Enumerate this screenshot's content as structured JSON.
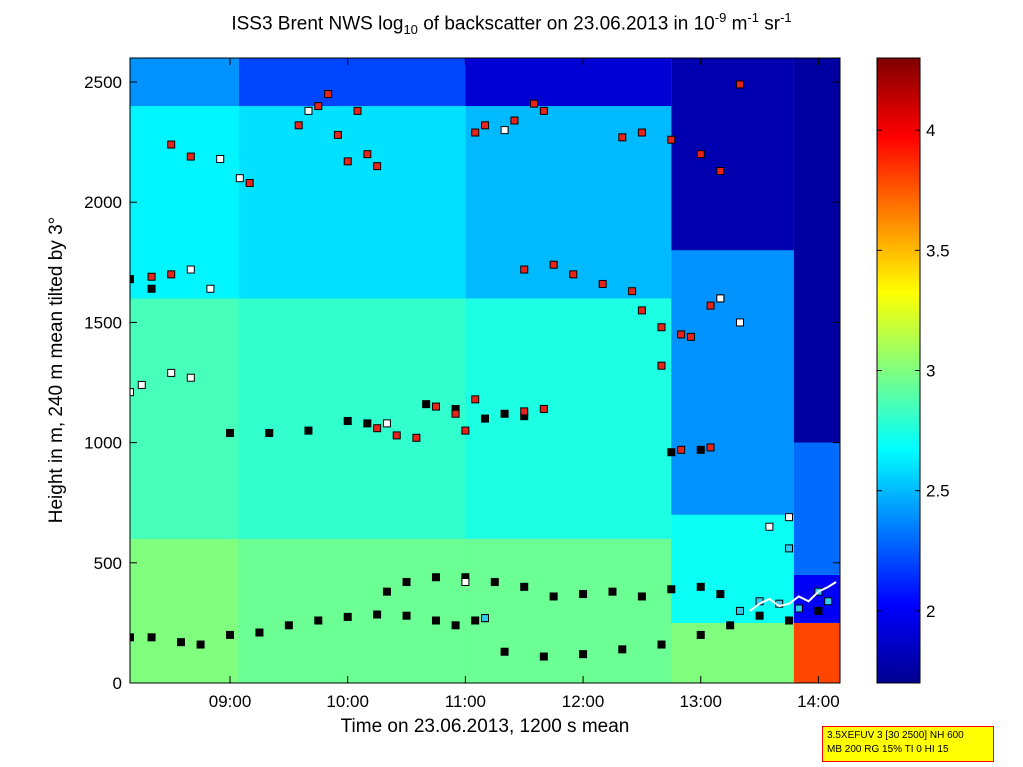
{
  "chart_data": {
    "type": "heatmap",
    "title": {
      "prefix": "ISS3 Brent NWS log",
      "sub": "10",
      "middle": " of backscatter on 23.06.2013 in 10",
      "sup1": "-9",
      "unit_m": " m",
      "sup2": "-1",
      "unit_sr": " sr",
      "sup3": "-1"
    },
    "xlabel": "Time on 23.06.2013, 1200 s mean",
    "ylabel": "Height in m, 240 m mean tilted by 3°",
    "x_ticks": [
      "09:00",
      "10:00",
      "11:00",
      "12:00",
      "13:00",
      "14:00"
    ],
    "xlim": [
      "08:09",
      "14:11"
    ],
    "y_ticks": [
      0,
      500,
      1000,
      1500,
      2000,
      2500
    ],
    "ylim": [
      0,
      2600
    ],
    "colorbar": {
      "ticks": [
        2,
        2.5,
        3,
        3.5,
        4
      ],
      "range": [
        1.7,
        4.3
      ],
      "colormap": "jet"
    },
    "field": [
      {
        "x": "08:09",
        "regions": [
          [
            0,
            600,
            3.0
          ],
          [
            600,
            1600,
            2.85
          ],
          [
            1600,
            2400,
            2.65
          ],
          [
            2400,
            2600,
            2.4
          ]
        ]
      },
      {
        "x": "10:00",
        "regions": [
          [
            0,
            600,
            2.95
          ],
          [
            600,
            1600,
            2.8
          ],
          [
            1600,
            2400,
            2.6
          ],
          [
            2400,
            2600,
            2.2
          ]
        ]
      },
      {
        "x": "12:00",
        "regions": [
          [
            0,
            600,
            2.95
          ],
          [
            600,
            1600,
            2.75
          ],
          [
            1600,
            2400,
            2.5
          ],
          [
            2400,
            2600,
            1.9
          ]
        ]
      },
      {
        "x": "13:30",
        "regions": [
          [
            0,
            250,
            3.0
          ],
          [
            250,
            700,
            2.7
          ],
          [
            700,
            1800,
            2.4
          ],
          [
            1800,
            2600,
            1.8
          ]
        ]
      },
      {
        "x": "14:05",
        "regions": [
          [
            0,
            250,
            3.8
          ],
          [
            250,
            450,
            2.0
          ],
          [
            450,
            1000,
            2.3
          ],
          [
            1000,
            2600,
            1.75
          ]
        ]
      }
    ],
    "series": [
      {
        "marker": "black-square",
        "points": [
          [
            "08:09",
            190
          ],
          [
            "08:20",
            190
          ],
          [
            "08:35",
            170
          ],
          [
            "08:45",
            160
          ],
          [
            "09:00",
            200
          ],
          [
            "09:15",
            210
          ],
          [
            "09:30",
            240
          ],
          [
            "09:45",
            260
          ],
          [
            "10:00",
            275
          ],
          [
            "10:15",
            285
          ],
          [
            "10:30",
            280
          ],
          [
            "10:45",
            260
          ],
          [
            "10:55",
            240
          ],
          [
            "11:05",
            260
          ],
          [
            "11:10",
            270
          ],
          [
            "10:20",
            380
          ],
          [
            "10:30",
            420
          ],
          [
            "10:45",
            440
          ],
          [
            "11:00",
            440
          ],
          [
            "11:15",
            420
          ],
          [
            "11:30",
            400
          ],
          [
            "11:45",
            360
          ],
          [
            "12:00",
            370
          ],
          [
            "12:15",
            380
          ],
          [
            "12:30",
            360
          ],
          [
            "12:45",
            390
          ],
          [
            "13:00",
            400
          ],
          [
            "13:10",
            370
          ],
          [
            "11:20",
            130
          ],
          [
            "11:40",
            110
          ],
          [
            "12:00",
            120
          ],
          [
            "12:20",
            140
          ],
          [
            "12:40",
            160
          ],
          [
            "13:00",
            200
          ],
          [
            "13:15",
            240
          ],
          [
            "13:30",
            280
          ],
          [
            "13:45",
            260
          ],
          [
            "14:00",
            300
          ],
          [
            "09:00",
            1040
          ],
          [
            "09:20",
            1040
          ],
          [
            "09:40",
            1050
          ],
          [
            "10:00",
            1090
          ],
          [
            "10:10",
            1080
          ],
          [
            "10:40",
            1160
          ],
          [
            "10:55",
            1140
          ],
          [
            "11:10",
            1100
          ],
          [
            "11:20",
            1120
          ],
          [
            "11:30",
            1110
          ],
          [
            "08:09",
            1680
          ],
          [
            "08:20",
            1640
          ],
          [
            "12:45",
            960
          ],
          [
            "13:00",
            970
          ]
        ]
      },
      {
        "marker": "red-square",
        "points": [
          [
            "08:30",
            2240
          ],
          [
            "08:40",
            2190
          ],
          [
            "09:10",
            2080
          ],
          [
            "09:35",
            2320
          ],
          [
            "09:45",
            2400
          ],
          [
            "09:50",
            2450
          ],
          [
            "09:55",
            2280
          ],
          [
            "10:00",
            2170
          ],
          [
            "10:05",
            2380
          ],
          [
            "10:10",
            2200
          ],
          [
            "10:15",
            2150
          ],
          [
            "11:05",
            2290
          ],
          [
            "11:10",
            2320
          ],
          [
            "11:25",
            2340
          ],
          [
            "11:35",
            2410
          ],
          [
            "11:40",
            2380
          ],
          [
            "12:20",
            2270
          ],
          [
            "12:30",
            2290
          ],
          [
            "12:45",
            2260
          ],
          [
            "13:00",
            2200
          ],
          [
            "13:10",
            2130
          ],
          [
            "13:20",
            2490
          ],
          [
            "08:20",
            1690
          ],
          [
            "08:30",
            1700
          ],
          [
            "11:30",
            1720
          ],
          [
            "11:45",
            1740
          ],
          [
            "11:55",
            1700
          ],
          [
            "12:10",
            1660
          ],
          [
            "12:25",
            1630
          ],
          [
            "12:30",
            1550
          ],
          [
            "12:40",
            1480
          ],
          [
            "12:50",
            1450
          ],
          [
            "13:05",
            1570
          ],
          [
            "13:10",
            1600
          ],
          [
            "12:55",
            1440
          ],
          [
            "12:40",
            1320
          ],
          [
            "10:15",
            1060
          ],
          [
            "10:25",
            1030
          ],
          [
            "10:35",
            1020
          ],
          [
            "10:45",
            1150
          ],
          [
            "10:55",
            1120
          ],
          [
            "11:00",
            1050
          ],
          [
            "11:05",
            1180
          ],
          [
            "11:30",
            1130
          ],
          [
            "11:40",
            1140
          ],
          [
            "12:50",
            970
          ],
          [
            "13:05",
            980
          ]
        ]
      },
      {
        "marker": "white-square",
        "points": [
          [
            "08:09",
            1210
          ],
          [
            "08:15",
            1240
          ],
          [
            "08:30",
            1290
          ],
          [
            "08:40",
            1270
          ],
          [
            "08:50",
            1640
          ],
          [
            "08:55",
            2180
          ],
          [
            "09:05",
            2100
          ],
          [
            "09:40",
            2380
          ],
          [
            "11:20",
            2300
          ],
          [
            "13:10",
            1600
          ],
          [
            "13:20",
            1500
          ],
          [
            "13:45",
            690
          ],
          [
            "13:35",
            650
          ],
          [
            "08:40",
            1720
          ],
          [
            "10:20",
            1080
          ],
          [
            "11:00",
            420
          ]
        ]
      },
      {
        "marker": "cyan-square",
        "points": [
          [
            "13:20",
            300
          ],
          [
            "13:30",
            340
          ],
          [
            "13:40",
            330
          ],
          [
            "13:50",
            310
          ],
          [
            "14:00",
            380
          ],
          [
            "14:05",
            340
          ],
          [
            "11:10",
            270
          ],
          [
            "13:45",
            560
          ]
        ]
      }
    ],
    "mixed_layer_line": {
      "color": "#ffffff",
      "points": [
        [
          "13:25",
          300
        ],
        [
          "13:30",
          330
        ],
        [
          "13:35",
          350
        ],
        [
          "13:40",
          320
        ],
        [
          "13:45",
          330
        ],
        [
          "13:50",
          360
        ],
        [
          "13:55",
          340
        ],
        [
          "14:00",
          380
        ],
        [
          "14:05",
          400
        ],
        [
          "14:09",
          420
        ]
      ]
    }
  },
  "info_box": {
    "line1": "3.5XEFUV 3 [30 2500] NH 600",
    "line2": "MB 200 RG 15% TI 0 HI 15"
  }
}
